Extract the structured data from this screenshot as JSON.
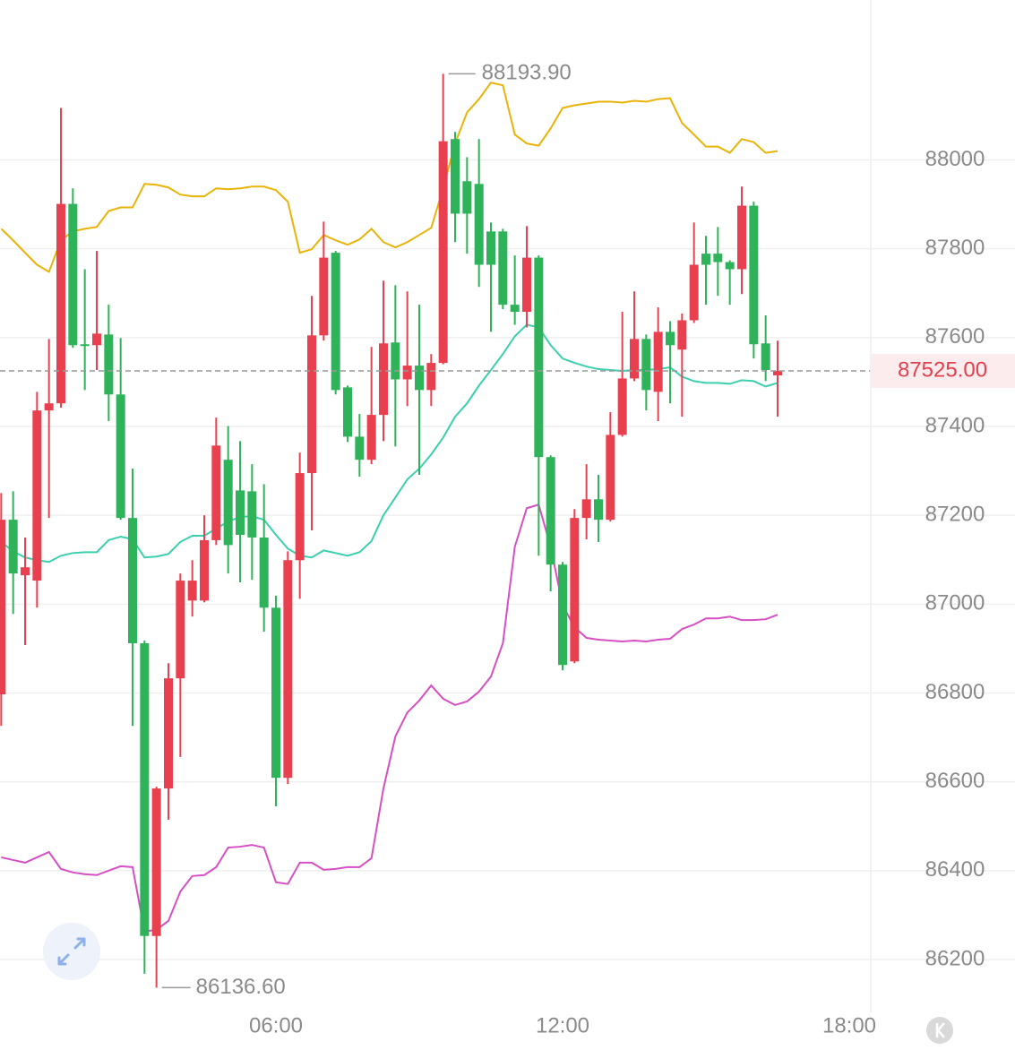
{
  "chart_data": {
    "type": "candlestick",
    "x": [
      0.25,
      0.5,
      0.75,
      1,
      1.25,
      1.5,
      1.75,
      2,
      2.25,
      2.5,
      2.75,
      3,
      3.25,
      3.5,
      3.75,
      4,
      4.25,
      4.5,
      4.75,
      5,
      5.25,
      5.5,
      5.75,
      6,
      6.25,
      6.5,
      6.75,
      7,
      7.25,
      7.5,
      7.75,
      8,
      8.25,
      8.5,
      8.75,
      9,
      9.25,
      9.5,
      9.75,
      10,
      10.25,
      10.5,
      10.75,
      11,
      11.25,
      11.5,
      11.75,
      12,
      12.25,
      12.5,
      12.75,
      13,
      13.25,
      13.5,
      13.75,
      14,
      14.25,
      14.5,
      14.75,
      15,
      15.25,
      15.5,
      15.75,
      16,
      16.25,
      16.5
    ],
    "open": [
      86797,
      87190,
      87065,
      87053,
      87436,
      87452,
      87901,
      87585,
      87583,
      87607,
      87472,
      87194,
      86912,
      86253,
      86585,
      86833,
      87008,
      87008,
      87144,
      87325,
      87256,
      87254,
      87150,
      86992,
      86609,
      87099,
      87295,
      87605,
      87791,
      87488,
      87377,
      87325,
      87426,
      87589,
      87506,
      87537,
      87482,
      87543,
      88047,
      87952,
      87946,
      87839,
      87839,
      87674,
      87658,
      87780,
      87331,
      87089,
      86871,
      87194,
      87236,
      87190,
      87381,
      87508,
      87597,
      87478,
      87613,
      87573,
      87639,
      87789,
      87789,
      87770,
      87754,
      87897,
      87587,
      87515
    ],
    "high": [
      87250,
      87254,
      87150,
      87478,
      87597,
      88117,
      87936,
      87754,
      87795,
      87674,
      87599,
      87305,
      86918,
      86589,
      86867,
      87069,
      87099,
      87200,
      87420,
      87401,
      87367,
      87315,
      87270,
      87019,
      87119,
      87341,
      87694,
      87861,
      87795,
      87492,
      87428,
      87579,
      87728,
      87718,
      87704,
      87674,
      87563,
      88193.9,
      88063,
      88006,
      88047,
      87859,
      87845,
      87785,
      87851,
      87785,
      87335,
      87095,
      87214,
      87315,
      87291,
      87432,
      87658,
      87704,
      87607,
      87668,
      87637,
      87654,
      87859,
      87829,
      87849,
      87774,
      87940,
      87906,
      87650,
      87593
    ],
    "low": [
      86726,
      86978,
      86908,
      86992,
      87194,
      87442,
      87577,
      87482,
      87527,
      87412,
      87190,
      86726,
      86168,
      86136.6,
      86515,
      86656,
      86972,
      87004,
      87133,
      87069,
      87049,
      87055,
      86938,
      86545,
      86595,
      87012,
      87166,
      87593,
      87472,
      87365,
      87287,
      87315,
      87367,
      87355,
      87446,
      87291,
      87446,
      87540,
      87815,
      87789,
      87714,
      87613,
      87664,
      87629,
      87623,
      87109,
      87029,
      86851,
      86867,
      87146,
      87140,
      87186,
      87377,
      87502,
      87436,
      87412,
      87452,
      87422,
      87633,
      87674,
      87694,
      87674,
      87698,
      87553,
      87502,
      87422
    ],
    "close": [
      87190,
      87069,
      87083,
      87436,
      87452,
      87901,
      87583,
      87581,
      87609,
      87472,
      87194,
      86912,
      86253,
      86585,
      86833,
      87053,
      87053,
      87144,
      87357,
      87133,
      87156,
      87150,
      86992,
      86609,
      87099,
      87295,
      87605,
      87780,
      87482,
      87377,
      87325,
      87426,
      87587,
      87506,
      87537,
      87482,
      87543,
      88042,
      87879,
      87879,
      87764,
      87764,
      87674,
      87658,
      87780,
      87331,
      87089,
      86863,
      87194,
      87236,
      87190,
      87381,
      87508,
      87597,
      87482,
      87613,
      87583,
      87639,
      87764,
      87764,
      87770,
      87754,
      87897,
      87585,
      87527,
      87525
    ],
    "up_color": "#e8404f",
    "down_color": "#2fb35a",
    "bands": [
      {
        "color": "#eab308",
        "values": [
          87845,
          87819,
          87791,
          87764,
          87748,
          87819,
          87839,
          87845,
          87849,
          87885,
          87893,
          87893,
          87946,
          87944,
          87938,
          87922,
          87918,
          87918,
          87936,
          87934,
          87936,
          87940,
          87940,
          87932,
          87906,
          87791,
          87799,
          87831,
          87819,
          87809,
          87821,
          87845,
          87815,
          87803,
          87815,
          87831,
          87847,
          87936,
          88037,
          88107,
          88137,
          88174,
          88168,
          88057,
          88037,
          88032,
          88071,
          88117,
          88123,
          88127,
          88131,
          88131,
          88129,
          88133,
          88131,
          88137,
          88139,
          88083,
          88057,
          88030,
          88030,
          88016,
          88047,
          88040,
          88016,
          88020
        ]
      },
      {
        "color": "#3ccfae",
        "values": [
          87140,
          87119,
          87105,
          87099,
          87095,
          87109,
          87115,
          87117,
          87117,
          87144,
          87152,
          87146,
          87105,
          87107,
          87113,
          87140,
          87154,
          87154,
          87170,
          87186,
          87196,
          87198,
          87190,
          87156,
          87125,
          87109,
          87105,
          87121,
          87115,
          87109,
          87117,
          87142,
          87200,
          87240,
          87281,
          87305,
          87337,
          87375,
          87422,
          87452,
          87492,
          87527,
          87563,
          87603,
          87629,
          87623,
          87583,
          87553,
          87543,
          87535,
          87529,
          87527,
          87525,
          87527,
          87527,
          87529,
          87533,
          87512,
          87502,
          87498,
          87498,
          87496,
          87504,
          87502,
          87490,
          87498
        ]
      },
      {
        "color": "#d64fc4",
        "values": [
          86430,
          86424,
          86418,
          86430,
          86442,
          86404,
          86396,
          86392,
          86390,
          86400,
          86410,
          86408,
          86263,
          86267,
          86287,
          86353,
          86388,
          86390,
          86408,
          86452,
          86454,
          86458,
          86452,
          86374,
          86370,
          86418,
          86418,
          86402,
          86404,
          86408,
          86408,
          86428,
          86585,
          86702,
          86756,
          86783,
          86817,
          86787,
          86773,
          86781,
          86803,
          86837,
          86912,
          87129,
          87216,
          87224,
          87129,
          86998,
          86948,
          86924,
          86920,
          86918,
          86916,
          86918,
          86916,
          86920,
          86922,
          86944,
          86954,
          86968,
          86968,
          86972,
          86964,
          86964,
          86966,
          86976
        ]
      }
    ],
    "xlim": [
      0.225,
      18.45
    ],
    "xticks": [
      {
        "value": 6,
        "label": "06:00"
      },
      {
        "value": 12,
        "label": "12:00"
      },
      {
        "value": 18,
        "label": "18:00"
      }
    ],
    "ylim": [
      86080,
      88360
    ],
    "yticks": [
      86200,
      86400,
      86600,
      86800,
      87000,
      87200,
      87400,
      87600,
      87800,
      88000
    ],
    "grid": true,
    "last_price": {
      "value": 87525,
      "label": "87525.00"
    },
    "high_label": {
      "value": 88193.9,
      "label": "88193.90"
    },
    "low_label": {
      "value": 86136.6,
      "label": "86136.60"
    }
  }
}
